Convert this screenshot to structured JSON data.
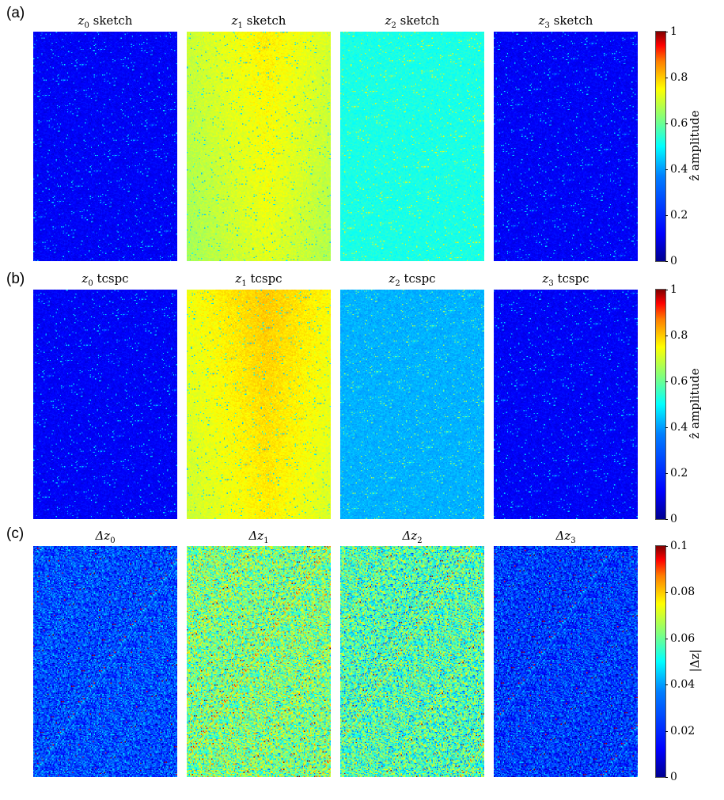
{
  "panels": [
    {
      "label": "(a)",
      "titles": [
        {
          "sym": "z",
          "sub": "0",
          "text": " sketch"
        },
        {
          "sym": "z",
          "sub": "1",
          "text": " sketch"
        },
        {
          "sym": "z",
          "sub": "2",
          "text": " sketch"
        },
        {
          "sym": "z",
          "sub": "3",
          "text": " sketch"
        }
      ],
      "colorbar_label": "ẑ amplitude",
      "colorbar_ticks": [
        "0",
        "0.2",
        "0.4",
        "0.6",
        "0.8",
        "1"
      ]
    },
    {
      "label": "(b)",
      "titles": [
        {
          "sym": "z",
          "sub": "0",
          "text": " tcspc"
        },
        {
          "sym": "z",
          "sub": "1",
          "text": " tcspc"
        },
        {
          "sym": "z",
          "sub": "2",
          "text": " tcspc"
        },
        {
          "sym": "z",
          "sub": "3",
          "text": " tcspc"
        }
      ],
      "colorbar_label": "ẑ amplitude",
      "colorbar_ticks": [
        "0",
        "0.2",
        "0.4",
        "0.6",
        "0.8",
        "1"
      ]
    },
    {
      "label": "(c)",
      "titles": [
        {
          "sym": "Δz",
          "sub": "0",
          "text": ""
        },
        {
          "sym": "Δz",
          "sub": "1",
          "text": ""
        },
        {
          "sym": "Δz",
          "sub": "2",
          "text": ""
        },
        {
          "sym": "Δz",
          "sub": "3",
          "text": ""
        }
      ],
      "colorbar_label": "|Δz|",
      "colorbar_ticks": [
        "0",
        "0.02",
        "0.04",
        "0.06",
        "0.08",
        "0.1"
      ]
    }
  ],
  "chart_data": [
    {
      "type": "heatmap",
      "row": "a",
      "colormap": "jet",
      "clim": [
        0,
        1
      ],
      "approx_mean_values": [
        0.12,
        0.58,
        0.4,
        0.12
      ]
    },
    {
      "type": "heatmap",
      "row": "b",
      "colormap": "jet",
      "clim": [
        0,
        1
      ],
      "approx_mean_values": [
        0.12,
        0.62,
        0.3,
        0.12
      ]
    },
    {
      "type": "heatmap",
      "row": "c",
      "colormap": "jet",
      "clim": [
        0,
        0.1
      ],
      "approx_mean_values": [
        0.02,
        0.05,
        0.045,
        0.018
      ]
    }
  ]
}
